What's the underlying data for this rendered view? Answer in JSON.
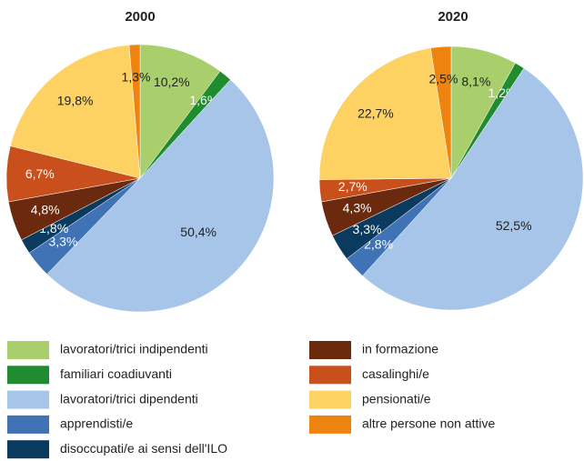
{
  "chart_data": [
    {
      "type": "pie",
      "title": "2000",
      "categories": [
        "lavoratori/trici indipendenti",
        "familiari coadiuvanti",
        "lavoratori/trici dipendenti",
        "apprendisti/e",
        "disoccupati/e ai sensi dell'ILO",
        "in formazione",
        "casalinghi/e",
        "pensionati/e",
        "altre persone non attive"
      ],
      "colors": [
        "#a8cf6b",
        "#1e8c2f",
        "#a7c5e8",
        "#3f73b6",
        "#0a3a5e",
        "#6b2a0e",
        "#c9501c",
        "#fdd263",
        "#ee8310"
      ],
      "values": [
        10.2,
        1.6,
        50.4,
        3.3,
        1.8,
        4.8,
        6.7,
        19.8,
        1.3
      ],
      "value_labels": [
        "10,2%",
        "1,6%",
        "50,4%",
        "3,3%",
        "1,8%",
        "4,8%",
        "6,7%",
        "19,8%",
        "1,3%"
      ]
    },
    {
      "type": "pie",
      "title": "2020",
      "values": [
        8.1,
        1.2,
        52.5,
        2.8,
        3.3,
        4.3,
        2.7,
        22.7,
        2.5
      ],
      "value_labels": [
        "8,1%",
        "1,2%",
        "52,5%",
        "2,8%",
        "3,3%",
        "4,3%",
        "2,7%",
        "22,7%",
        "2,5%"
      ]
    }
  ]
}
